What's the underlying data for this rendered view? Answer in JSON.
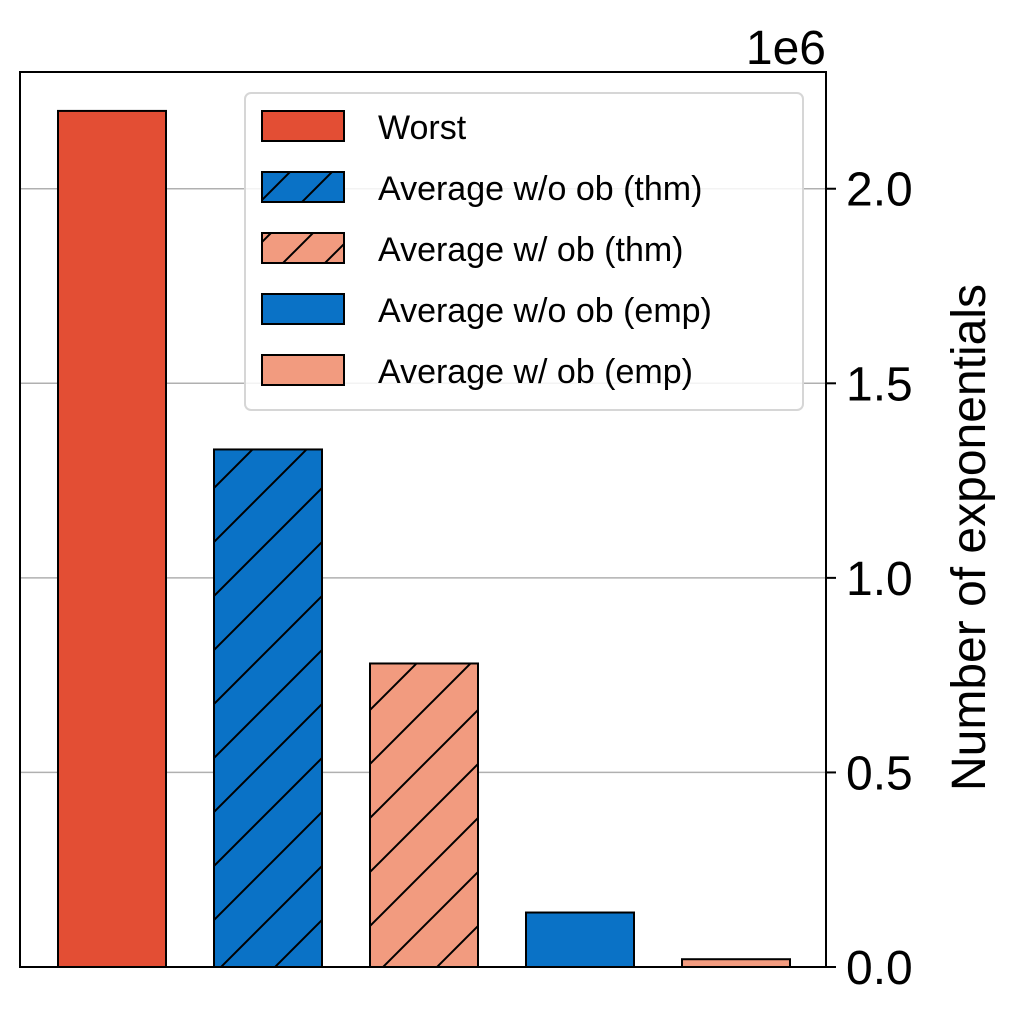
{
  "chart_data": {
    "type": "bar",
    "title": "",
    "xlabel": "",
    "ylabel": "Number of exponentials",
    "y_offset_label": "1e6",
    "ylim": [
      0,
      2.3
    ],
    "yticks": [
      0.0,
      0.5,
      1.0,
      1.5,
      2.0
    ],
    "ytick_labels": [
      "0.0",
      "0.5",
      "1.0",
      "1.5",
      "2.0"
    ],
    "y_axis_side": "right",
    "grid": "horizontal",
    "legend_position": "top-right",
    "categories": [
      "Worst",
      "Average w/o ob (thm)",
      "Average w/ ob (thm)",
      "Average w/o ob (emp)",
      "Average w/ ob (emp)"
    ],
    "values": [
      2.2,
      1.33,
      0.78,
      0.14,
      0.02
    ],
    "colors": [
      "#e34e34",
      "#0a72c6",
      "#f29b7f",
      "#0a72c6",
      "#f29b7f"
    ],
    "hatched": [
      false,
      true,
      true,
      false,
      false
    ]
  }
}
